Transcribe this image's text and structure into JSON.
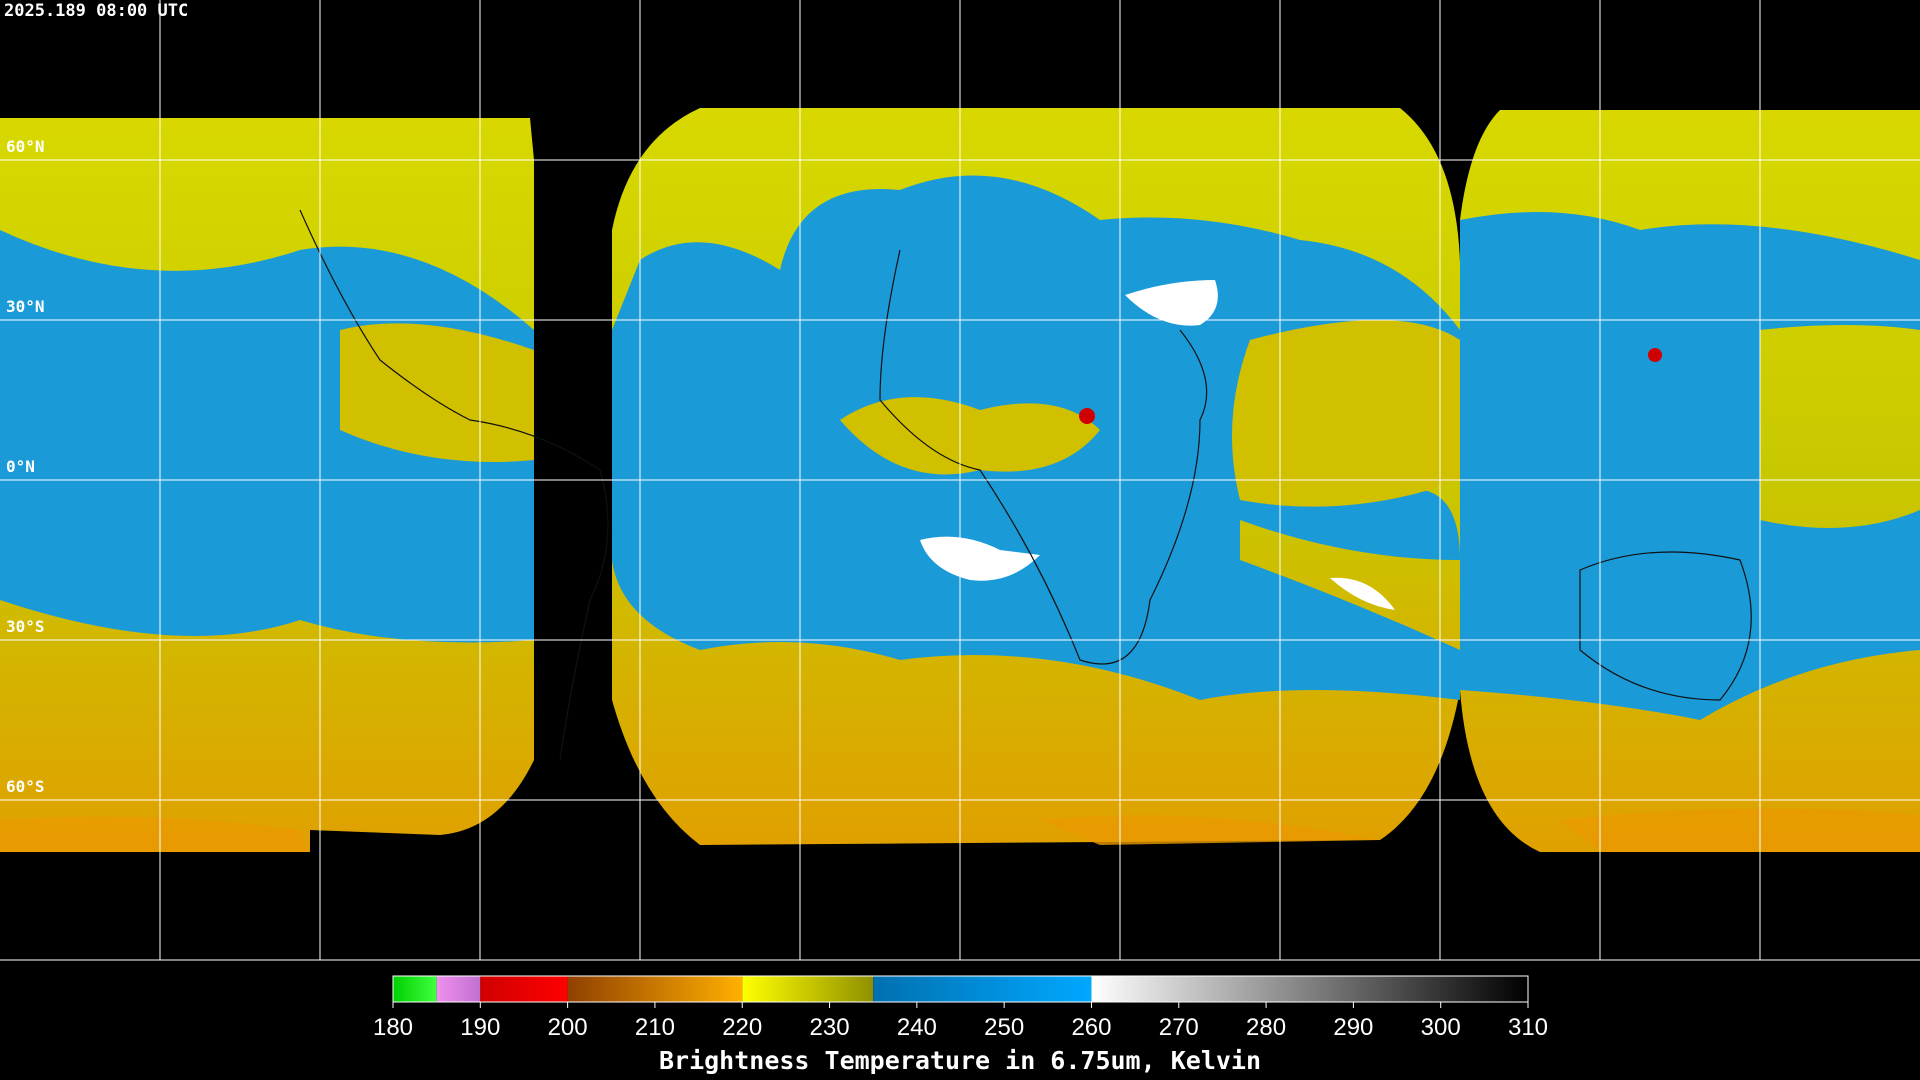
{
  "timestamp": "2025.189 08:00 UTC",
  "latitude_lines": [
    {
      "value": 60,
      "label": "60°N"
    },
    {
      "value": 30,
      "label": "30°N"
    },
    {
      "value": 0,
      "label": "0°N"
    },
    {
      "value": -30,
      "label": "30°S"
    },
    {
      "value": -60,
      "label": "60°S"
    }
  ],
  "colorbar": {
    "title": "Brightness Temperature in 6.75um, Kelvin",
    "range": [
      180,
      310
    ],
    "ticks": [
      180,
      190,
      200,
      210,
      220,
      230,
      240,
      250,
      260,
      270,
      280,
      290,
      300,
      310
    ],
    "segments": [
      {
        "from": 180,
        "to": 185,
        "colors": [
          "#00d000",
          "#40ff40"
        ]
      },
      {
        "from": 185,
        "to": 190,
        "colors": [
          "#f090f0",
          "#c070d0"
        ]
      },
      {
        "from": 190,
        "to": 200,
        "colors": [
          "#d00000",
          "#ff0000"
        ]
      },
      {
        "from": 200,
        "to": 220,
        "colors": [
          "#904000",
          "#ffb000"
        ]
      },
      {
        "from": 220,
        "to": 235,
        "colors": [
          "#ffff00",
          "#909000"
        ]
      },
      {
        "from": 235,
        "to": 260,
        "colors": [
          "#0070b0",
          "#00a8ff"
        ]
      },
      {
        "from": 260,
        "to": 310,
        "colors": [
          "#ffffff",
          "#000000"
        ]
      }
    ]
  }
}
